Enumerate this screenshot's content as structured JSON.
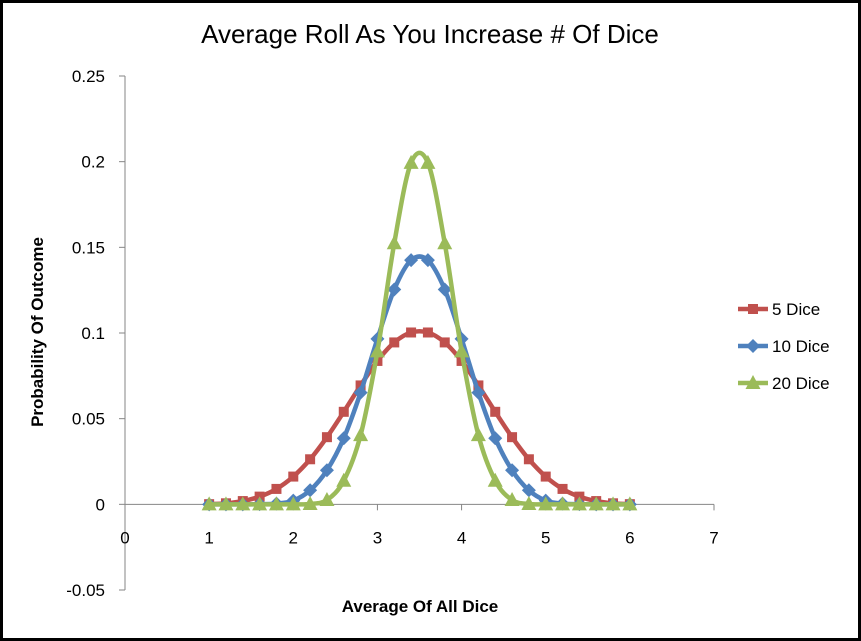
{
  "chart_data": {
    "type": "line",
    "title": "Average Roll As You Increase # Of Dice",
    "xlabel": "Average Of All Dice",
    "ylabel": "Probability Of Outcome",
    "xlim": [
      0,
      7
    ],
    "ylim": [
      -0.05,
      0.25
    ],
    "xticks": [
      "0",
      "1",
      "2",
      "3",
      "4",
      "5",
      "6",
      "7"
    ],
    "yticks": [
      "-0.05",
      "0",
      "0.05",
      "0.1",
      "0.15",
      "0.2",
      "0.25"
    ],
    "grid": false,
    "legend_position": "right",
    "series": [
      {
        "name": "5 Dice",
        "color": "#C0504D",
        "marker": "square",
        "x": [
          1.0,
          1.2,
          1.4,
          1.6,
          1.8,
          2.0,
          2.2,
          2.4,
          2.6,
          2.8,
          3.0,
          3.2,
          3.4,
          3.6,
          3.8,
          4.0,
          4.2,
          4.4,
          4.6,
          4.8,
          5.0,
          5.2,
          5.4,
          5.6,
          5.8,
          6.0
        ],
        "y": [
          0.0001,
          0.0006,
          0.0019,
          0.0045,
          0.009,
          0.0162,
          0.0263,
          0.0392,
          0.054,
          0.0694,
          0.0837,
          0.0945,
          0.1003,
          0.1003,
          0.0945,
          0.0837,
          0.0694,
          0.054,
          0.0392,
          0.0263,
          0.0162,
          0.009,
          0.0045,
          0.0019,
          0.0006,
          0.0001
        ]
      },
      {
        "name": "10 Dice",
        "color": "#4F81BD",
        "marker": "diamond",
        "x": [
          1.0,
          1.2,
          1.4,
          1.6,
          1.8,
          2.0,
          2.2,
          2.4,
          2.6,
          2.8,
          3.0,
          3.2,
          3.4,
          3.6,
          3.8,
          4.0,
          4.2,
          4.4,
          4.6,
          4.8,
          5.0,
          5.2,
          5.4,
          5.6,
          5.8,
          6.0
        ],
        "y": [
          0.0,
          0.0,
          0.0,
          0.0001,
          0.0004,
          0.0022,
          0.0082,
          0.0199,
          0.0386,
          0.0652,
          0.0966,
          0.1254,
          0.1425,
          0.1425,
          0.1254,
          0.0966,
          0.0652,
          0.0386,
          0.0199,
          0.0082,
          0.0022,
          0.0004,
          0.0001,
          0.0,
          0.0,
          0.0
        ]
      },
      {
        "name": "20 Dice",
        "color": "#9BBB59",
        "marker": "triangle",
        "x": [
          1.0,
          1.2,
          1.4,
          1.6,
          1.8,
          2.0,
          2.2,
          2.4,
          2.6,
          2.8,
          3.0,
          3.2,
          3.4,
          3.6,
          3.8,
          4.0,
          4.2,
          4.4,
          4.6,
          4.8,
          5.0,
          5.2,
          5.4,
          5.6,
          5.8,
          6.0
        ],
        "y": [
          0.0,
          0.0,
          0.0,
          0.0,
          0.0,
          0.0,
          0.0002,
          0.0025,
          0.0138,
          0.0404,
          0.0893,
          0.1524,
          0.1993,
          0.1993,
          0.1524,
          0.0893,
          0.0404,
          0.0138,
          0.0025,
          0.0002,
          0.0,
          0.0,
          0.0,
          0.0,
          0.0,
          0.0
        ]
      }
    ]
  }
}
